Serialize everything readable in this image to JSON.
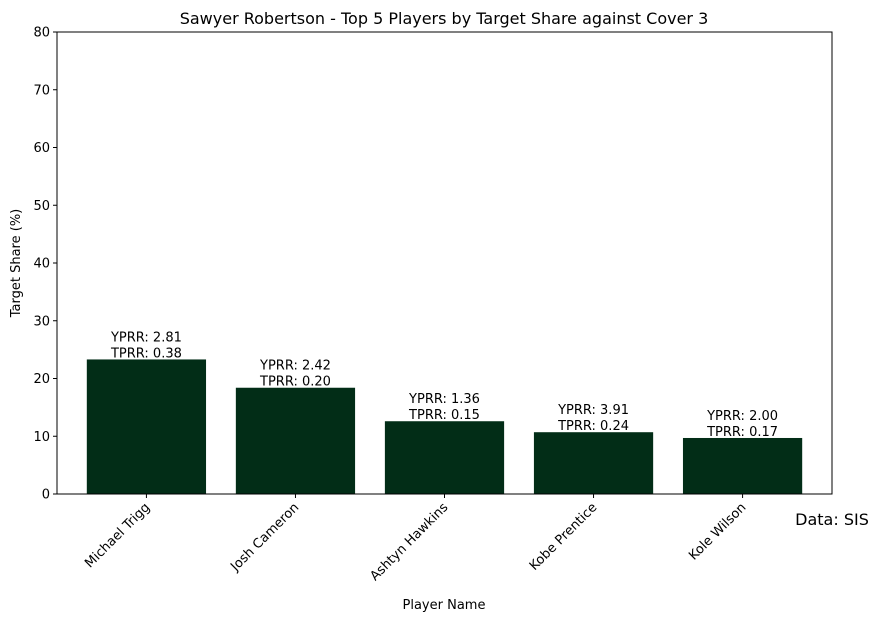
{
  "chart_data": {
    "type": "bar",
    "title": "Sawyer Robertson - Top 5 Players by Target Share against Cover 3",
    "xlabel": "Player Name",
    "ylabel": "Target Share (%)",
    "ylim": [
      0,
      80
    ],
    "yticks": [
      0,
      10,
      20,
      30,
      40,
      50,
      60,
      70,
      80
    ],
    "grid": false,
    "bar_color": "#022d17",
    "categories": [
      "Michael Trigg",
      "Josh Cameron",
      "Ashtyn Hawkins",
      "Kobe Prentice",
      "Kole Wilson"
    ],
    "values": [
      23.3,
      18.4,
      12.6,
      10.7,
      9.7
    ],
    "annotations": [
      [
        "YPRR: 2.81",
        "TPRR: 0.38"
      ],
      [
        "YPRR: 2.42",
        "TPRR: 0.20"
      ],
      [
        "YPRR: 1.36",
        "TPRR: 0.15"
      ],
      [
        "YPRR: 3.91",
        "TPRR: 0.24"
      ],
      [
        "YPRR: 2.00",
        "TPRR: 0.17"
      ]
    ]
  },
  "source_note": "Data: SIS"
}
